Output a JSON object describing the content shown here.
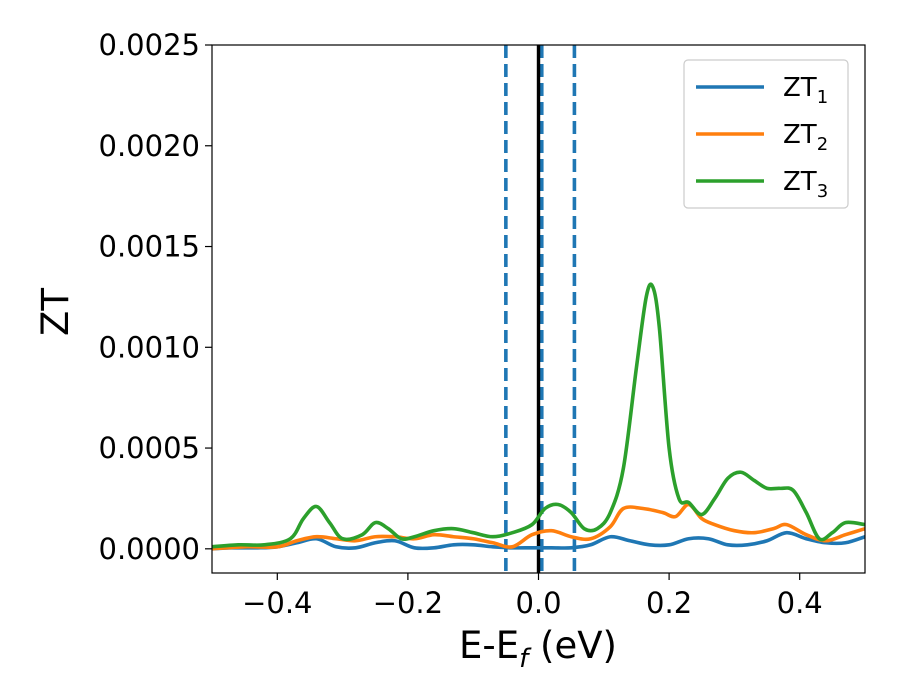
{
  "chart_data": {
    "type": "line",
    "xlabel_main": "E-E",
    "xlabel_sub": "f",
    "xlabel_unit": " (eV)",
    "ylabel": "ZT",
    "xlim": [
      -0.5,
      0.5
    ],
    "ylim": [
      -0.00012,
      0.0025
    ],
    "x_ticks": [
      -0.4,
      -0.2,
      0.0,
      0.2,
      0.4
    ],
    "x_tick_labels": [
      "−0.4",
      "−0.2",
      "0.0",
      "0.2",
      "0.4"
    ],
    "y_ticks": [
      0.0,
      0.0005,
      0.001,
      0.0015,
      0.002,
      0.0025
    ],
    "y_tick_labels": [
      "0.0000",
      "0.0005",
      "0.0010",
      "0.0015",
      "0.0020",
      "0.0025"
    ],
    "grid": false,
    "legend_position": "top-right",
    "vlines": [
      {
        "x": -0.05,
        "style": "dashed",
        "color": "#1f77b4"
      },
      {
        "x": 0.0,
        "style": "solid",
        "color": "#000000"
      },
      {
        "x": 0.005,
        "style": "dashed",
        "color": "#1f77b4"
      },
      {
        "x": 0.055,
        "style": "dashed",
        "color": "#1f77b4"
      }
    ],
    "series": [
      {
        "name": "ZT",
        "subscript": "1",
        "color": "#1f77b4",
        "x": [
          -0.5,
          -0.47,
          -0.43,
          -0.4,
          -0.37,
          -0.34,
          -0.31,
          -0.28,
          -0.25,
          -0.22,
          -0.19,
          -0.16,
          -0.13,
          -0.1,
          -0.07,
          -0.04,
          -0.01,
          0.02,
          0.05,
          0.08,
          0.11,
          0.14,
          0.17,
          0.2,
          0.23,
          0.26,
          0.29,
          0.32,
          0.35,
          0.38,
          0.41,
          0.44,
          0.47,
          0.5
        ],
        "y": [
          0.0,
          5e-06,
          5e-06,
          1e-05,
          3e-05,
          5e-05,
          1e-05,
          5e-06,
          3e-05,
          4e-05,
          5e-06,
          5e-06,
          2e-05,
          2e-05,
          1e-05,
          5e-06,
          5e-06,
          5e-06,
          5e-06,
          2e-05,
          6e-05,
          4e-05,
          2e-05,
          2e-05,
          5e-05,
          5e-05,
          2e-05,
          2e-05,
          4e-05,
          8e-05,
          5e-05,
          3e-05,
          3e-05,
          6e-05
        ]
      },
      {
        "name": "ZT",
        "subscript": "2",
        "color": "#ff7f0e",
        "x": [
          -0.5,
          -0.45,
          -0.4,
          -0.37,
          -0.34,
          -0.31,
          -0.28,
          -0.25,
          -0.22,
          -0.19,
          -0.16,
          -0.13,
          -0.1,
          -0.07,
          -0.04,
          -0.01,
          0.02,
          0.05,
          0.08,
          0.11,
          0.13,
          0.16,
          0.19,
          0.21,
          0.23,
          0.25,
          0.27,
          0.3,
          0.33,
          0.36,
          0.38,
          0.41,
          0.44,
          0.47,
          0.5
        ],
        "y": [
          0.0,
          1e-05,
          1e-05,
          4e-05,
          6e-05,
          5e-05,
          4e-05,
          6e-05,
          6e-05,
          5e-05,
          7e-05,
          6e-05,
          5e-05,
          3e-05,
          1e-05,
          7e-05,
          9e-05,
          6e-05,
          5e-05,
          0.00011,
          0.0002,
          0.0002,
          0.00018,
          0.00016,
          0.00022,
          0.00015,
          0.00012,
          9e-05,
          8e-05,
          0.0001,
          0.00012,
          7e-05,
          4e-05,
          7e-05,
          0.0001
        ]
      },
      {
        "name": "ZT",
        "subscript": "3",
        "color": "#2ca02c",
        "x": [
          -0.5,
          -0.46,
          -0.42,
          -0.38,
          -0.36,
          -0.34,
          -0.32,
          -0.3,
          -0.27,
          -0.25,
          -0.23,
          -0.21,
          -0.19,
          -0.16,
          -0.13,
          -0.1,
          -0.07,
          -0.04,
          -0.01,
          0.01,
          0.03,
          0.05,
          0.07,
          0.09,
          0.11,
          0.13,
          0.15,
          0.165,
          0.175,
          0.185,
          0.2,
          0.215,
          0.23,
          0.25,
          0.27,
          0.29,
          0.31,
          0.33,
          0.35,
          0.37,
          0.39,
          0.41,
          0.43,
          0.45,
          0.47,
          0.5
        ],
        "y": [
          1e-05,
          2e-05,
          2e-05,
          5e-05,
          0.00015,
          0.00021,
          0.00013,
          5e-05,
          7e-05,
          0.00013,
          0.0001,
          5e-05,
          6e-05,
          9e-05,
          0.0001,
          8e-05,
          6e-05,
          8e-05,
          0.00012,
          0.0002,
          0.00022,
          0.00018,
          0.0001,
          0.0001,
          0.00018,
          0.0004,
          0.0009,
          0.00125,
          0.0013,
          0.0011,
          0.0005,
          0.00025,
          0.00023,
          0.00017,
          0.00025,
          0.00035,
          0.00038,
          0.00034,
          0.0003,
          0.0003,
          0.00029,
          0.00018,
          5e-05,
          8e-05,
          0.00013,
          0.00012
        ]
      }
    ]
  }
}
